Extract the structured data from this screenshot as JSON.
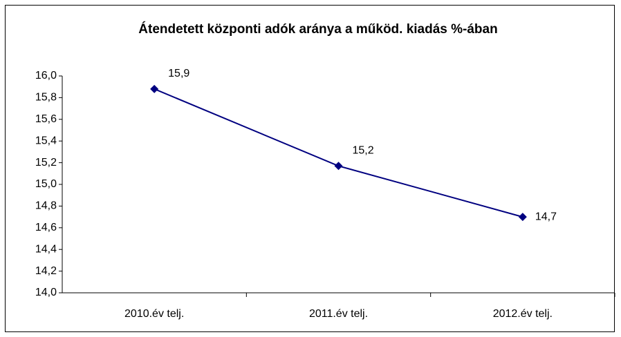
{
  "chart_data": {
    "type": "line",
    "title": "Átendetett központi adók aránya a működ. kiadás %-ában",
    "categories": [
      "2010.év telj.",
      "2011.év telj.",
      "2012.év telj."
    ],
    "series": [
      {
        "color": "#000080",
        "values": [
          15.88,
          15.17,
          14.7
        ],
        "value_labels": [
          "15,9",
          "15,2",
          "14,7"
        ]
      }
    ],
    "ylim": [
      14.0,
      16.0
    ],
    "yticks": [
      {
        "value": 14.0,
        "label": "14,0"
      },
      {
        "value": 14.2,
        "label": "14,2"
      },
      {
        "value": 14.4,
        "label": "14,4"
      },
      {
        "value": 14.6,
        "label": "14,6"
      },
      {
        "value": 14.8,
        "label": "14,8"
      },
      {
        "value": 15.0,
        "label": "15,0"
      },
      {
        "value": 15.2,
        "label": "15,2"
      },
      {
        "value": 15.4,
        "label": "15,4"
      },
      {
        "value": 15.6,
        "label": "15,6"
      },
      {
        "value": 15.8,
        "label": "15,8"
      },
      {
        "value": 16.0,
        "label": "16,0"
      }
    ],
    "grid": false
  }
}
